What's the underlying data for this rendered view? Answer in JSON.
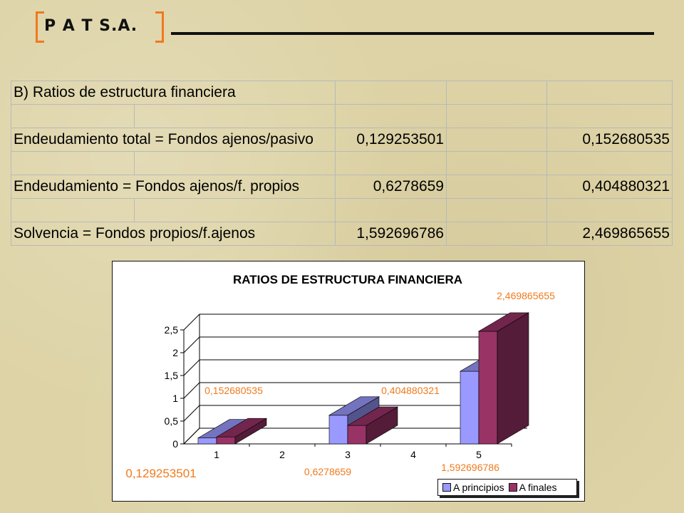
{
  "brand": {
    "text": "P A T S.A.",
    "accent": "#f07a1c"
  },
  "table": {
    "rows": [
      [
        "B) Ratios de estructura financiera",
        "",
        "",
        ""
      ],
      [
        "",
        "",
        "",
        ""
      ],
      [
        "Endeudamiento total = Fondos ajenos/pasivo",
        "0,129253501",
        "",
        "0,152680535"
      ],
      [
        "",
        "",
        "",
        ""
      ],
      [
        "Endeudamiento = Fondos ajenos/f. propios",
        "0,6278659",
        "",
        "0,404880321"
      ],
      [
        "",
        "",
        "",
        ""
      ],
      [
        "Solvencia = Fondos propios/f.ajenos",
        "1,592696786",
        "",
        "2,469865655"
      ]
    ]
  },
  "chart_data": {
    "type": "bar",
    "title": "RATIOS DE ESTRUCTURA FINANCIERA",
    "categories": [
      "1",
      "2",
      "3",
      "4",
      "5"
    ],
    "y_ticks": [
      "0",
      "0,5",
      "1",
      "1,5",
      "2",
      "2,5"
    ],
    "ylim": [
      0,
      2.5
    ],
    "series": [
      {
        "name": "A principios",
        "color": "#9999ff",
        "values": [
          0.129253501,
          null,
          0.6278659,
          null,
          1.592696786
        ],
        "labels": [
          "0,129253501",
          "",
          "0,6278659",
          "",
          "1,592696786"
        ]
      },
      {
        "name": "A finales",
        "color": "#993366",
        "values": [
          0.152680535,
          null,
          0.404880321,
          null,
          2.469865655
        ],
        "labels": [
          "0,152680535",
          "",
          "0,404880321",
          "",
          "2,469865655"
        ]
      }
    ],
    "label_color": "#f07a1c",
    "legend_position": "bottom-right",
    "grid": true
  }
}
